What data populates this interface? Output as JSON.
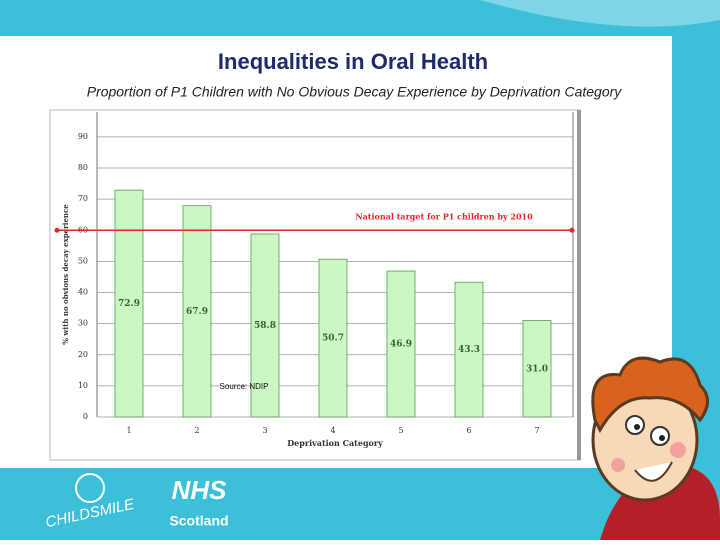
{
  "title": "Inequalities in Oral Health",
  "subtitle": "Proportion of P1 Children with No Obvious Decay Experience by Deprivation Category",
  "chart_data": {
    "type": "bar",
    "categories": [
      "1",
      "2",
      "3",
      "4",
      "5",
      "6",
      "7"
    ],
    "values": [
      72.9,
      67.9,
      58.8,
      50.7,
      46.9,
      43.3,
      31.0
    ],
    "value_labels": [
      "72.9",
      "67.9",
      "58.8",
      "50.7",
      "46.9",
      "43.3",
      "31.0"
    ],
    "color": "#ccf7c4",
    "x_label": "Deprivation Category",
    "y_label": "% with no obvious decay experience",
    "ylim": [
      0,
      98
    ],
    "yticks": [
      0,
      10,
      20,
      30,
      40,
      50,
      60,
      70,
      80,
      90
    ],
    "grid": true,
    "target": {
      "value": 60,
      "label": "National target for P1 children by 2010",
      "color": "#e8262a"
    },
    "annotation": "Source: NDIP"
  },
  "footer": {
    "nhs": "NHS",
    "nhs_region": "Scotland",
    "childsmile": "CHILDSMILE"
  }
}
